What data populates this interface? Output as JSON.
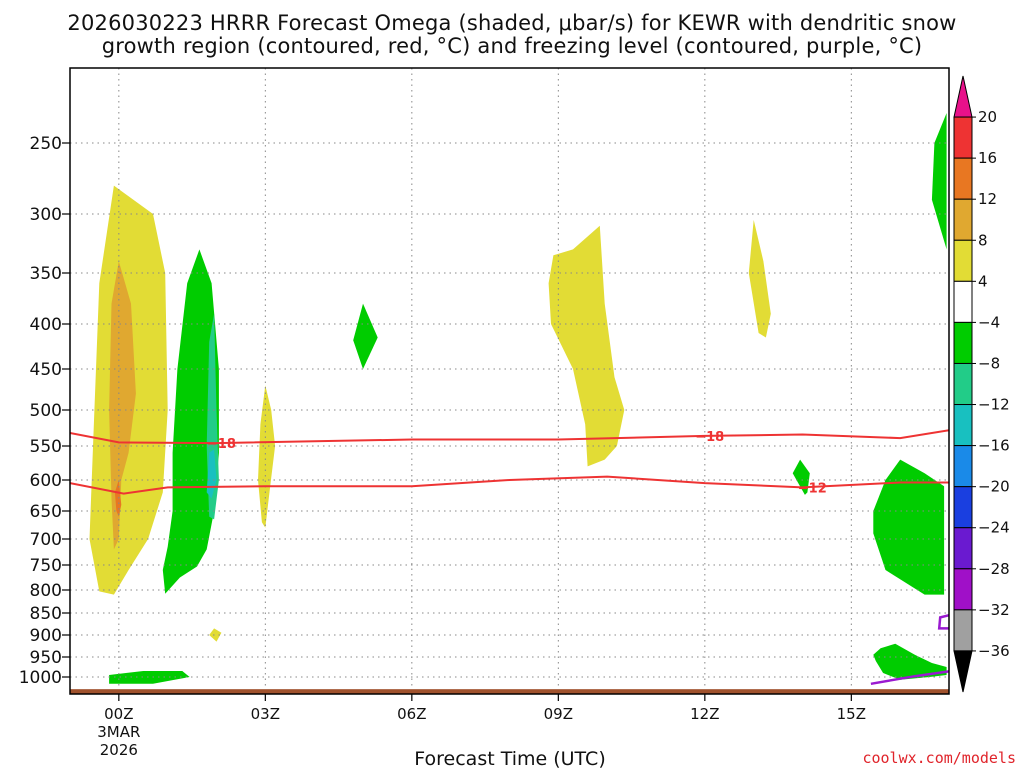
{
  "chart_data": {
    "type": "time-height",
    "title_line1": "2026030223 HRRR Forecast Omega (shaded, μbar/s) for KEWR with dendritic snow",
    "title_line2": "growth region (contoured, red, °C) and freezing level (contoured, purple, °C)",
    "xlabel": "Forecast Time (UTC)",
    "credit": "coolwx.com/models",
    "x_range_hours": [
      23,
      41
    ],
    "y_range_hpa": [
      200,
      1030
    ],
    "x_ticks": [
      {
        "hour": 24,
        "label": "00Z"
      },
      {
        "hour": 27,
        "label": "03Z"
      },
      {
        "hour": 30,
        "label": "06Z"
      },
      {
        "hour": 33,
        "label": "09Z"
      },
      {
        "hour": 36,
        "label": "12Z"
      },
      {
        "hour": 39,
        "label": "15Z"
      }
    ],
    "x_subtitle": [
      "3MAR",
      "2026"
    ],
    "y_ticks": [
      {
        "p": 250,
        "label": "250"
      },
      {
        "p": 300,
        "label": "300"
      },
      {
        "p": 350,
        "label": "350"
      },
      {
        "p": 400,
        "label": "400"
      },
      {
        "p": 450,
        "label": "450"
      },
      {
        "p": 500,
        "label": "500"
      },
      {
        "p": 550,
        "label": "550"
      },
      {
        "p": 600,
        "label": "600"
      },
      {
        "p": 650,
        "label": "650"
      },
      {
        "p": 700,
        "label": "700"
      },
      {
        "p": 750,
        "label": "750"
      },
      {
        "p": 800,
        "label": "800"
      },
      {
        "p": 850,
        "label": "850"
      },
      {
        "p": 900,
        "label": "900"
      },
      {
        "p": 950,
        "label": "950"
      },
      {
        "p": 1000,
        "label": "1000"
      }
    ],
    "colorbar": [
      {
        "lo": 20,
        "hi": null,
        "color": "#e8118a"
      },
      {
        "lo": 16,
        "hi": 20,
        "color": "#ee3333"
      },
      {
        "lo": 12,
        "hi": 16,
        "color": "#e87722"
      },
      {
        "lo": 8,
        "hi": 12,
        "color": "#e0a830"
      },
      {
        "lo": 4,
        "hi": 8,
        "color": "#e2dc35"
      },
      {
        "lo": -4,
        "hi": 4,
        "color": "#ffffff"
      },
      {
        "lo": -8,
        "hi": -4,
        "color": "#00cc00"
      },
      {
        "lo": -12,
        "hi": -8,
        "color": "#22cc88"
      },
      {
        "lo": -16,
        "hi": -12,
        "color": "#18c0c0"
      },
      {
        "lo": -20,
        "hi": -16,
        "color": "#1a8ae8"
      },
      {
        "lo": -24,
        "hi": -20,
        "color": "#1a3fe0"
      },
      {
        "lo": -28,
        "hi": -24,
        "color": "#6a1ad0"
      },
      {
        "lo": -32,
        "hi": -28,
        "color": "#a010c8"
      },
      {
        "lo": -36,
        "hi": -32,
        "color": "#a0a0a0"
      },
      {
        "lo": null,
        "hi": -36,
        "color": "#000000"
      }
    ],
    "colorbar_labels": [
      "20",
      "16",
      "12",
      "8",
      "4",
      "−4",
      "−8",
      "−12",
      "−16",
      "−20",
      "−24",
      "−28",
      "−32",
      "−36"
    ],
    "omega_regions": [
      {
        "color": "#e2dc35",
        "pts": [
          [
            23.6,
            803
          ],
          [
            23.4,
            700
          ],
          [
            23.5,
            500
          ],
          [
            23.6,
            360
          ],
          [
            23.9,
            280
          ],
          [
            24.7,
            300
          ],
          [
            24.95,
            350
          ],
          [
            25.0,
            500
          ],
          [
            24.9,
            620
          ],
          [
            24.6,
            700
          ],
          [
            24.2,
            760
          ],
          [
            23.9,
            810
          ]
        ]
      },
      {
        "color": "#e0a830",
        "pts": [
          [
            23.85,
            630
          ],
          [
            23.8,
            500
          ],
          [
            23.85,
            380
          ],
          [
            24.0,
            340
          ],
          [
            24.25,
            380
          ],
          [
            24.35,
            480
          ],
          [
            24.2,
            560
          ],
          [
            24.05,
            600
          ],
          [
            24.0,
            700
          ],
          [
            23.9,
            720
          ]
        ]
      },
      {
        "color": "#e87722",
        "pts": [
          [
            23.95,
            650
          ],
          [
            23.92,
            620
          ],
          [
            24.0,
            600
          ],
          [
            24.05,
            640
          ],
          [
            24.0,
            660
          ]
        ]
      },
      {
        "color": "#00cc00",
        "pts": [
          [
            24.95,
            808
          ],
          [
            24.9,
            760
          ],
          [
            25.0,
            715
          ],
          [
            25.1,
            650
          ],
          [
            25.1,
            560
          ],
          [
            25.2,
            450
          ],
          [
            25.4,
            360
          ],
          [
            25.65,
            330
          ],
          [
            25.9,
            360
          ],
          [
            26.05,
            450
          ],
          [
            26.05,
            560
          ],
          [
            25.95,
            650
          ],
          [
            25.8,
            720
          ],
          [
            25.6,
            753
          ],
          [
            25.25,
            775
          ]
        ]
      },
      {
        "color": "#22cc88",
        "pts": [
          [
            25.85,
            660
          ],
          [
            25.8,
            550
          ],
          [
            25.85,
            420
          ],
          [
            25.95,
            390
          ],
          [
            26.0,
            500
          ],
          [
            26.05,
            600
          ],
          [
            25.95,
            665
          ]
        ]
      },
      {
        "color": "#18c0c0",
        "pts": [
          [
            25.8,
            620
          ],
          [
            25.85,
            560
          ],
          [
            25.95,
            555
          ],
          [
            26.0,
            600
          ],
          [
            25.9,
            630
          ]
        ]
      },
      {
        "color": "#e2dc35",
        "pts": [
          [
            26.93,
            670
          ],
          [
            26.85,
            600
          ],
          [
            26.9,
            520
          ],
          [
            27.0,
            470
          ],
          [
            27.12,
            500
          ],
          [
            27.2,
            550
          ],
          [
            27.1,
            610
          ],
          [
            27.0,
            680
          ]
        ]
      },
      {
        "color": "#00cc00",
        "pts": [
          [
            28.8,
            418
          ],
          [
            29.0,
            380
          ],
          [
            29.3,
            415
          ],
          [
            29.0,
            450
          ]
        ]
      },
      {
        "color": "#e2dc35",
        "pts": [
          [
            33.6,
            580
          ],
          [
            33.55,
            520
          ],
          [
            33.3,
            450
          ],
          [
            32.85,
            400
          ],
          [
            32.8,
            360
          ],
          [
            32.9,
            335
          ],
          [
            33.3,
            330
          ],
          [
            33.85,
            310
          ],
          [
            33.95,
            380
          ],
          [
            34.15,
            460
          ],
          [
            34.35,
            500
          ],
          [
            34.2,
            550
          ],
          [
            33.95,
            570
          ]
        ]
      },
      {
        "color": "#e2dc35",
        "pts": [
          [
            37.1,
            410
          ],
          [
            36.9,
            350
          ],
          [
            37.0,
            305
          ],
          [
            37.2,
            340
          ],
          [
            37.35,
            390
          ],
          [
            37.25,
            415
          ]
        ]
      },
      {
        "color": "#00cc00",
        "pts": [
          [
            38.05,
            624
          ],
          [
            37.8,
            590
          ],
          [
            37.95,
            570
          ],
          [
            38.15,
            590
          ],
          [
            38.1,
            620
          ]
        ]
      },
      {
        "color": "#00cc00",
        "pts": [
          [
            40.5,
            810
          ],
          [
            39.7,
            760
          ],
          [
            39.45,
            690
          ],
          [
            39.45,
            650
          ],
          [
            39.7,
            600
          ],
          [
            40.0,
            570
          ],
          [
            40.5,
            590
          ],
          [
            40.9,
            610
          ],
          [
            40.9,
            810
          ]
        ]
      },
      {
        "color": "#00cc00",
        "pts": [
          [
            40.95,
            330
          ],
          [
            40.65,
            290
          ],
          [
            40.7,
            250
          ],
          [
            40.95,
            230
          ]
        ]
      },
      {
        "color": "#00cc00",
        "pts": [
          [
            39.45,
            945
          ],
          [
            39.6,
            930
          ],
          [
            39.9,
            920
          ],
          [
            40.3,
            945
          ],
          [
            40.65,
            965
          ],
          [
            40.95,
            975
          ],
          [
            40.95,
            995
          ],
          [
            40.6,
            1000
          ],
          [
            40.0,
            1005
          ],
          [
            39.65,
            990
          ],
          [
            39.5,
            960
          ]
        ]
      },
      {
        "color": "#00cc00",
        "pts": [
          [
            23.8,
            995
          ],
          [
            24.5,
            985
          ],
          [
            25.3,
            985
          ],
          [
            25.45,
            1000
          ],
          [
            24.7,
            1012
          ],
          [
            23.8,
            1012
          ]
        ]
      },
      {
        "color": "#e2dc35",
        "pts": [
          [
            25.85,
            900
          ],
          [
            25.95,
            885
          ],
          [
            26.1,
            895
          ],
          [
            26.0,
            915
          ]
        ]
      }
    ],
    "isotherms": [
      {
        "label": "−18",
        "pts": [
          [
            23,
            532
          ],
          [
            24,
            545
          ],
          [
            26,
            546
          ],
          [
            30,
            541
          ],
          [
            33,
            541
          ],
          [
            36,
            536
          ],
          [
            38,
            534
          ],
          [
            40,
            539
          ],
          [
            41,
            528
          ]
        ],
        "label_at": [
          [
            26.1,
            546
          ],
          [
            36.1,
            536
          ]
        ],
        "label_text": [
          "−18",
          "−18"
        ]
      },
      {
        "label": "−12",
        "pts": [
          [
            23,
            605
          ],
          [
            24.1,
            622
          ],
          [
            25,
            612
          ],
          [
            27,
            610
          ],
          [
            30,
            610
          ],
          [
            32,
            600
          ],
          [
            34,
            595
          ],
          [
            36,
            605
          ],
          [
            38,
            612
          ],
          [
            40,
            604
          ],
          [
            41,
            604
          ]
        ],
        "label_at": [
          [
            38.2,
            612
          ]
        ],
        "label_text": [
          "−12"
        ]
      }
    ],
    "freezing_level": [
      {
        "pts": [
          [
            39.4,
            1012
          ],
          [
            40.3,
            998
          ],
          [
            41,
            986
          ]
        ]
      },
      {
        "pts": [
          [
            41,
            855
          ],
          [
            40.82,
            860
          ],
          [
            40.8,
            885
          ],
          [
            41,
            885
          ]
        ]
      }
    ],
    "ground": {
      "color": "#a0522d",
      "p_top": 1025
    }
  }
}
